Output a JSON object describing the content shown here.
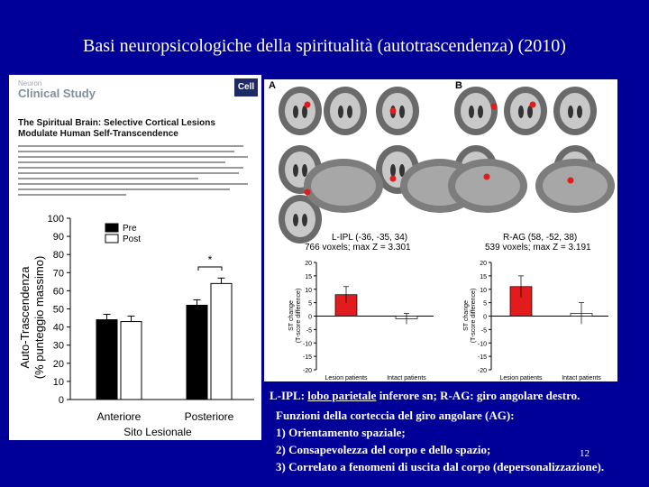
{
  "slide": {
    "title": "Basi neuropsicologiche della spiritualità (autotrascendenza) (2010)",
    "page_number": "12"
  },
  "paper": {
    "journal_top": "Neuron",
    "journal_name": "Clinical Study",
    "publisher_logo": "Cell",
    "title_line1": "The Spiritual Brain: Selective Cortical Lesions",
    "title_line2": "Modulate Human Self-Transcendence"
  },
  "bar_chart": {
    "ylabel_line1": "Auto-Trascendenza",
    "ylabel_line2": "(% punteggio massimo)",
    "xlabel": "Sito Lesionale",
    "significance": "*"
  },
  "brain_panel": {
    "label_a": "A",
    "label_b": "B",
    "left_region": "L-IPL (-36, -35, 34)",
    "left_stats": "766 voxels; max Z = 3.301",
    "right_region": "R-AG (58, -52, 38)",
    "right_stats": "539 voxels; max Z = 3.191",
    "ylabel_line1": "ST change",
    "ylabel_line2": "(T-score difference)",
    "lesion_label": "Lesion patients",
    "intact_label": "Intact patients"
  },
  "caption": {
    "prefix": "L-IPL: ",
    "underlined": "lobo parietale",
    "rest": " inferore sn; R-AG: giro angolare destro."
  },
  "functions": {
    "heading": "Funzioni della corteccia del giro angolare (AG):",
    "item1": "1) Orientamento spaziale;",
    "item2": "2) Consapevolezza del corpo e dello spazio;",
    "item3": "3) Correlato a fenomeni di  uscita dal corpo (depersonalizzazione)."
  },
  "chart_data": [
    {
      "type": "bar",
      "title": "",
      "categories": [
        "Anteriore",
        "Posteriore"
      ],
      "series": [
        {
          "name": "Pre",
          "color": "#000000",
          "values": [
            44,
            52
          ]
        },
        {
          "name": "Post",
          "color": "#ffffff",
          "values": [
            43,
            64
          ]
        }
      ],
      "errors": [
        [
          3,
          3
        ],
        [
          3,
          3
        ]
      ],
      "ylim": [
        0,
        100
      ],
      "yticks": [
        0,
        10,
        20,
        30,
        40,
        50,
        60,
        70,
        80,
        90,
        100
      ],
      "xlabel": "Sito Lesionale",
      "ylabel": "Auto-Trascendenza (% punteggio massimo)",
      "legend": "top-left"
    },
    {
      "type": "bar",
      "title": "L-IPL (-36, -35, 34)",
      "categories": [
        "Lesion patients",
        "Intact patients"
      ],
      "values": [
        8,
        -1
      ],
      "colors": [
        "#e21c1c",
        "#ffffff"
      ],
      "errors": [
        3,
        2
      ],
      "ylim": [
        -20,
        20
      ],
      "yticks": [
        -20,
        -15,
        -10,
        -5,
        0,
        5,
        10,
        15,
        20
      ],
      "ylabel": "ST change (T-score difference)"
    },
    {
      "type": "bar",
      "title": "R-AG (58, -52, 38)",
      "categories": [
        "Lesion patients",
        "Intact patients"
      ],
      "values": [
        11,
        1
      ],
      "colors": [
        "#e21c1c",
        "#ffffff"
      ],
      "errors": [
        4,
        4
      ],
      "ylim": [
        -20,
        20
      ],
      "yticks": [
        -20,
        -15,
        -10,
        -5,
        0,
        5,
        10,
        15,
        20
      ],
      "ylabel": "ST change (T-score difference)"
    }
  ]
}
